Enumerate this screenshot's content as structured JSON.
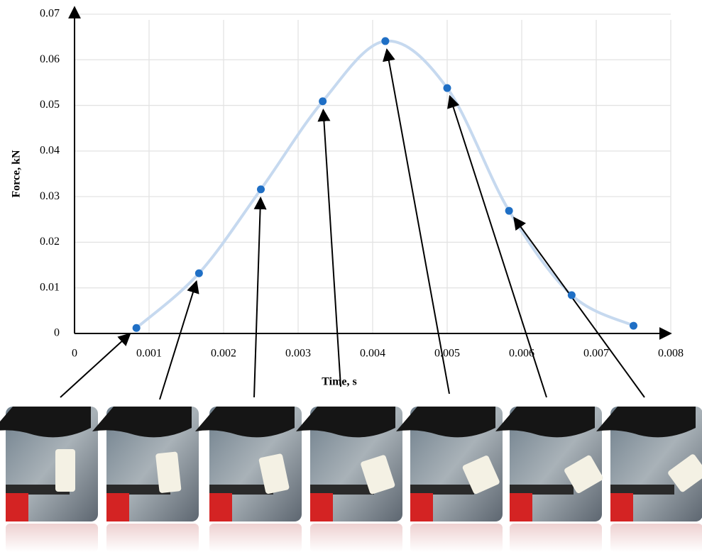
{
  "chart_data": {
    "type": "line",
    "x_label": "Time, s",
    "y_label": "Force, kN",
    "x": [
      0.00083,
      0.00167,
      0.0025,
      0.00333,
      0.00417,
      0.005,
      0.00583,
      0.00667,
      0.0075
    ],
    "series": [
      {
        "color": "#1f6fc5",
        "line_color": "#c6d9ef",
        "values": [
          0.0012,
          0.0132,
          0.0316,
          0.0509,
          0.0641,
          0.0538,
          0.0269,
          0.0084,
          0.0017
        ]
      }
    ],
    "xlim": [
      0,
      0.008
    ],
    "xticks": [
      0,
      0.001,
      0.002,
      0.003,
      0.004,
      0.005,
      0.006,
      0.007,
      0.008
    ],
    "ylim": [
      0,
      0.07
    ],
    "yticks": [
      0,
      0.01,
      0.02,
      0.03,
      0.04,
      0.05,
      0.06,
      0.07
    ],
    "grid": true,
    "smooth": true
  }
}
